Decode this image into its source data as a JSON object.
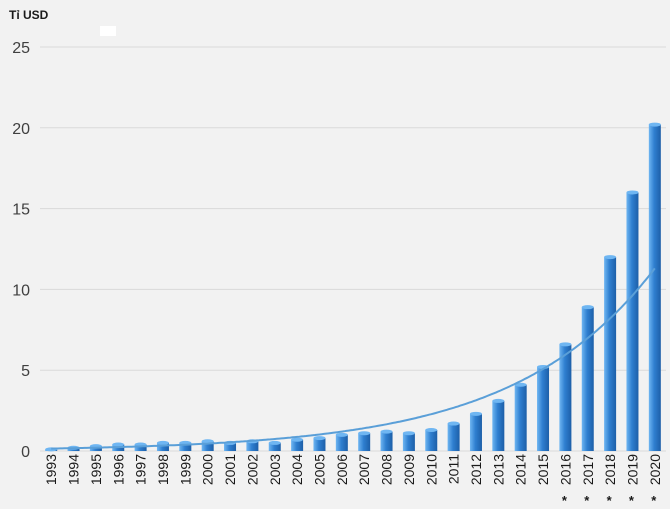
{
  "chart_data": {
    "type": "bar",
    "unit_label": "Tỉ USD",
    "categories": [
      "1993",
      "1994",
      "1995",
      "1996",
      "1997",
      "1998",
      "1999",
      "2000",
      "2001",
      "2002",
      "2003",
      "2004",
      "2005",
      "2006",
      "2007",
      "2008",
      "2009",
      "2010",
      "2011",
      "2012",
      "2013",
      "2014",
      "2015",
      "2016",
      "2017",
      "2018",
      "2019",
      "2020"
    ],
    "forecast_marks": [
      "",
      "",
      "",
      "",
      "",
      "",
      "",
      "",
      "",
      "",
      "",
      "",
      "",
      "",
      "",
      "",
      "",
      "",
      "",
      "",
      "",
      "",
      "",
      "*",
      "*",
      "*",
      "*",
      "*"
    ],
    "values": [
      0.1,
      0.2,
      0.3,
      0.4,
      0.4,
      0.5,
      0.5,
      0.6,
      0.5,
      0.6,
      0.5,
      0.7,
      0.8,
      1.0,
      1.1,
      1.2,
      1.1,
      1.3,
      1.7,
      2.3,
      3.1,
      4.1,
      5.2,
      6.6,
      8.9,
      12.0,
      16.0,
      20.2
    ],
    "trendline": {
      "type": "exponential",
      "start_value": 0.15,
      "end_value": 11.3
    },
    "ylim": [
      0,
      25
    ],
    "yticks": [
      0,
      5,
      10,
      15,
      20,
      25
    ],
    "grid": true,
    "colors": {
      "bar": "#2f7fd0",
      "bar_light": "#6fb6f2",
      "bar_dark": "#1d5fa8",
      "trend": "#5a9fd8",
      "grid": "#d9d9d9",
      "background": "#f2f2f2"
    }
  }
}
